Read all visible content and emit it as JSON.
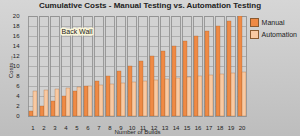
{
  "chart_data": {
    "type": "bar",
    "title": "Cumulative Costs - Manual Testing vs. Automation Testing",
    "x_label": "Number of Builds",
    "y_label": "Costs",
    "categories": [
      1,
      2,
      3,
      4,
      5,
      6,
      7,
      8,
      9,
      10,
      11,
      12,
      13,
      14,
      15,
      16,
      17,
      18,
      19,
      20
    ],
    "series": [
      {
        "name": "Manual",
        "color": "#ef8a45",
        "values": [
          1,
          2,
          3,
          4,
          5,
          6,
          7,
          8,
          9,
          10,
          11,
          12,
          13,
          14,
          15,
          16,
          17,
          18,
          19,
          20
        ]
      },
      {
        "name": "Automation",
        "color": "#f8c9a2",
        "values": [
          5,
          5.2,
          5.4,
          5.6,
          5.8,
          6,
          6.2,
          6.4,
          6.6,
          6.8,
          7,
          7.2,
          7.4,
          7.6,
          7.8,
          8,
          8.2,
          8.4,
          8.6,
          8.8
        ]
      }
    ],
    "ylim": [
      0,
      20
    ],
    "yticks": [
      0,
      2,
      4,
      6,
      8,
      10,
      12,
      14,
      16,
      18,
      20
    ],
    "grid": true,
    "legend": "right",
    "annotations": [
      {
        "text": "Back Wall",
        "x": 5,
        "y": 17
      }
    ]
  }
}
